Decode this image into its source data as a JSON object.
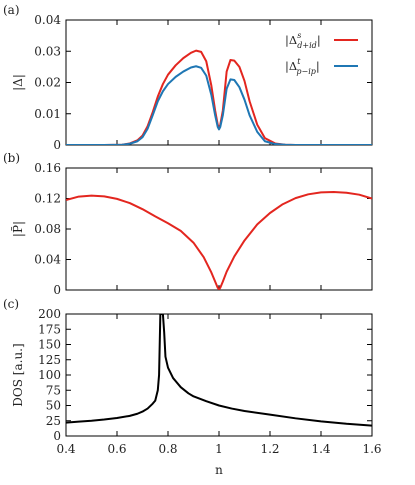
{
  "chart_data": [
    {
      "type": "line",
      "panel_label": "(a)",
      "ylabel": "|Δ|",
      "xlim": [
        0.4,
        1.6
      ],
      "ylim": [
        0,
        0.04
      ],
      "yticks": [
        "0",
        "0.01",
        "0.02",
        "0.03",
        "0.04"
      ],
      "legend_position": "top-right",
      "series": [
        {
          "name": "|Δ^s_{d+id}|",
          "color": "#e3261f",
          "x": [
            0.4,
            0.55,
            0.62,
            0.65,
            0.68,
            0.7,
            0.72,
            0.74,
            0.76,
            0.78,
            0.8,
            0.83,
            0.86,
            0.89,
            0.91,
            0.93,
            0.95,
            0.97,
            0.985,
            0.995,
            1.0,
            1.005,
            1.015,
            1.03,
            1.045,
            1.06,
            1.08,
            1.1,
            1.12,
            1.15,
            1.18,
            1.22,
            1.26,
            1.3,
            1.6
          ],
          "y": [
            0,
            0,
            0.0001,
            0.0005,
            0.0015,
            0.003,
            0.006,
            0.0105,
            0.0155,
            0.0195,
            0.0225,
            0.0255,
            0.0278,
            0.0295,
            0.0302,
            0.0298,
            0.0268,
            0.019,
            0.011,
            0.0065,
            0.0055,
            0.0065,
            0.011,
            0.0235,
            0.0272,
            0.027,
            0.025,
            0.0205,
            0.014,
            0.0065,
            0.0022,
            0.0005,
            0.0001,
            0,
            0
          ]
        },
        {
          "name": "|Δ^t_{p−ip}|",
          "color": "#1f77b4",
          "x": [
            0.4,
            0.55,
            0.62,
            0.65,
            0.68,
            0.7,
            0.72,
            0.74,
            0.76,
            0.78,
            0.8,
            0.83,
            0.86,
            0.89,
            0.91,
            0.93,
            0.95,
            0.97,
            0.985,
            0.995,
            1.0,
            1.005,
            1.015,
            1.03,
            1.045,
            1.06,
            1.08,
            1.1,
            1.12,
            1.15,
            1.18,
            1.22,
            1.26,
            1.3,
            1.6
          ],
          "y": [
            0,
            0,
            0.0001,
            0.0004,
            0.0012,
            0.0025,
            0.0052,
            0.0095,
            0.014,
            0.0172,
            0.0195,
            0.0218,
            0.0235,
            0.0248,
            0.0252,
            0.0247,
            0.0222,
            0.016,
            0.0095,
            0.0058,
            0.005,
            0.0058,
            0.0095,
            0.018,
            0.021,
            0.0208,
            0.0185,
            0.0145,
            0.0095,
            0.0042,
            0.0012,
            0.0003,
            0.0001,
            0,
            0
          ]
        }
      ]
    },
    {
      "type": "line",
      "panel_label": "(b)",
      "ylabel": "|P̃|",
      "xlim": [
        0.4,
        1.6
      ],
      "ylim": [
        0,
        0.16
      ],
      "yticks": [
        "0",
        "0.04",
        "0.08",
        "0.12",
        "0.16"
      ],
      "series": [
        {
          "color": "#e3261f",
          "x": [
            0.4,
            0.45,
            0.5,
            0.55,
            0.6,
            0.65,
            0.7,
            0.75,
            0.8,
            0.85,
            0.9,
            0.94,
            0.97,
            0.985,
            0.995,
            1.0,
            1.005,
            1.015,
            1.03,
            1.06,
            1.1,
            1.15,
            1.2,
            1.25,
            1.3,
            1.35,
            1.4,
            1.45,
            1.5,
            1.55,
            1.6
          ],
          "y": [
            0.118,
            0.1225,
            0.1238,
            0.1228,
            0.1195,
            0.114,
            0.106,
            0.0965,
            0.0875,
            0.0775,
            0.062,
            0.043,
            0.023,
            0.011,
            0.003,
            0.001,
            0.003,
            0.011,
            0.024,
            0.044,
            0.065,
            0.086,
            0.101,
            0.1125,
            0.1205,
            0.1255,
            0.128,
            0.1285,
            0.1275,
            0.125,
            0.12
          ]
        }
      ]
    },
    {
      "type": "line",
      "panel_label": "(c)",
      "ylabel": "DOS [a.u.]",
      "xlabel": "n",
      "xlim": [
        0.4,
        1.6
      ],
      "ylim": [
        0,
        200
      ],
      "yticks": [
        "0",
        "25",
        "50",
        "75",
        "100",
        "125",
        "150",
        "175",
        "200"
      ],
      "xticks": [
        "0.4",
        "0.6",
        "0.8",
        "1",
        "1.2",
        "1.4",
        "1.6"
      ],
      "series": [
        {
          "color": "#000000",
          "x": [
            0.4,
            0.45,
            0.5,
            0.55,
            0.6,
            0.65,
            0.68,
            0.7,
            0.72,
            0.74,
            0.75,
            0.76,
            0.765,
            0.77,
            0.775,
            0.78,
            0.785,
            0.79,
            0.8,
            0.82,
            0.85,
            0.88,
            0.9,
            0.95,
            1.0,
            1.05,
            1.1,
            1.2,
            1.3,
            1.4,
            1.5,
            1.6
          ],
          "y": [
            22,
            23.5,
            25,
            27,
            29.5,
            33,
            36.5,
            40,
            45,
            53,
            58,
            75,
            100,
            200,
            200,
            200,
            170,
            130,
            112,
            95,
            80,
            70,
            65,
            57,
            50,
            45,
            41,
            35,
            29,
            24,
            20,
            17
          ]
        }
      ]
    }
  ]
}
